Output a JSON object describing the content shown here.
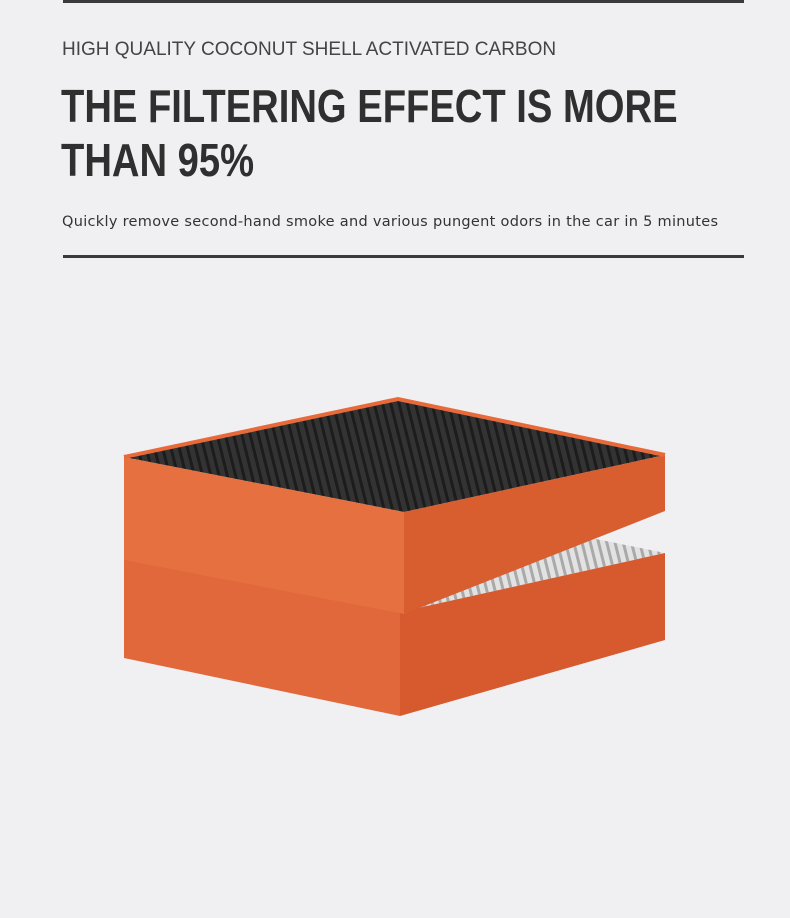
{
  "header": {
    "kicker": "HIGH QUALITY COCONUT SHELL ACTIVATED CARBON",
    "title_line1": "THE FILTERING EFFECT IS MORE",
    "title_line2": "THAN 95%",
    "description": "Quickly remove second-hand smoke and various pungent odors in the car in 5 minutes"
  },
  "colors": {
    "frame": "#e8693a",
    "carbon": "#2a2a2a",
    "white_media": "#d8d8d8"
  }
}
